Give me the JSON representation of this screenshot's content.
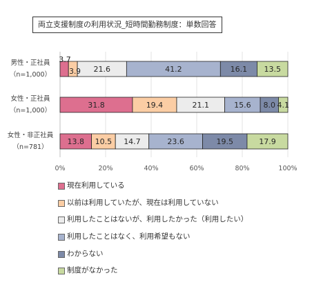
{
  "chart_data": {
    "type": "bar",
    "orientation": "horizontal",
    "stacked": "percent",
    "title": "両立支援制度の利用状況_短時間勤務制度：単数回答",
    "categories": [
      [
        "男性・正社員",
        "（n=1,000）"
      ],
      [
        "女性・正社員",
        "（n=1,000）"
      ],
      [
        "女性・非正社員",
        "（n=781）"
      ]
    ],
    "series": [
      {
        "name": "現在利用している",
        "color": "#dd6f8f",
        "values": [
          3.7,
          31.8,
          13.8
        ],
        "labels": [
          "3.7",
          "31.8",
          "13.8"
        ]
      },
      {
        "name": "以前は利用していたが、現在は利用していない",
        "color": "#fbcda4",
        "values": [
          3.9,
          19.4,
          10.5
        ],
        "labels": [
          "3.9",
          "19.4",
          "10.5"
        ]
      },
      {
        "name": "利用したことはないが、利用したかった（利用したい）",
        "color": "#ececec",
        "values": [
          21.6,
          21.1,
          14.7
        ],
        "labels": [
          "21.6",
          "21.1",
          "14.7"
        ]
      },
      {
        "name": "利用したことはなく、利用希望もない",
        "color": "#a7b3ce",
        "values": [
          41.2,
          15.6,
          23.6
        ],
        "labels": [
          "41.2",
          "15.6",
          "23.6"
        ]
      },
      {
        "name": "わからない",
        "color": "#7d8aa8",
        "values": [
          16.1,
          8.0,
          19.5
        ],
        "labels": [
          "16.1",
          "8.0",
          "19.5"
        ]
      },
      {
        "name": "制度がなかった",
        "color": "#c8daa0",
        "values": [
          13.5,
          4.1,
          17.9
        ],
        "labels": [
          "13.5",
          "4.1",
          "17.9"
        ]
      }
    ],
    "xaxis": {
      "ticks": [
        "0%",
        "20%",
        "40%",
        "60%",
        "80%",
        "100%"
      ],
      "range": [
        0,
        100
      ]
    },
    "grid": true,
    "legend_position": "bottom"
  }
}
